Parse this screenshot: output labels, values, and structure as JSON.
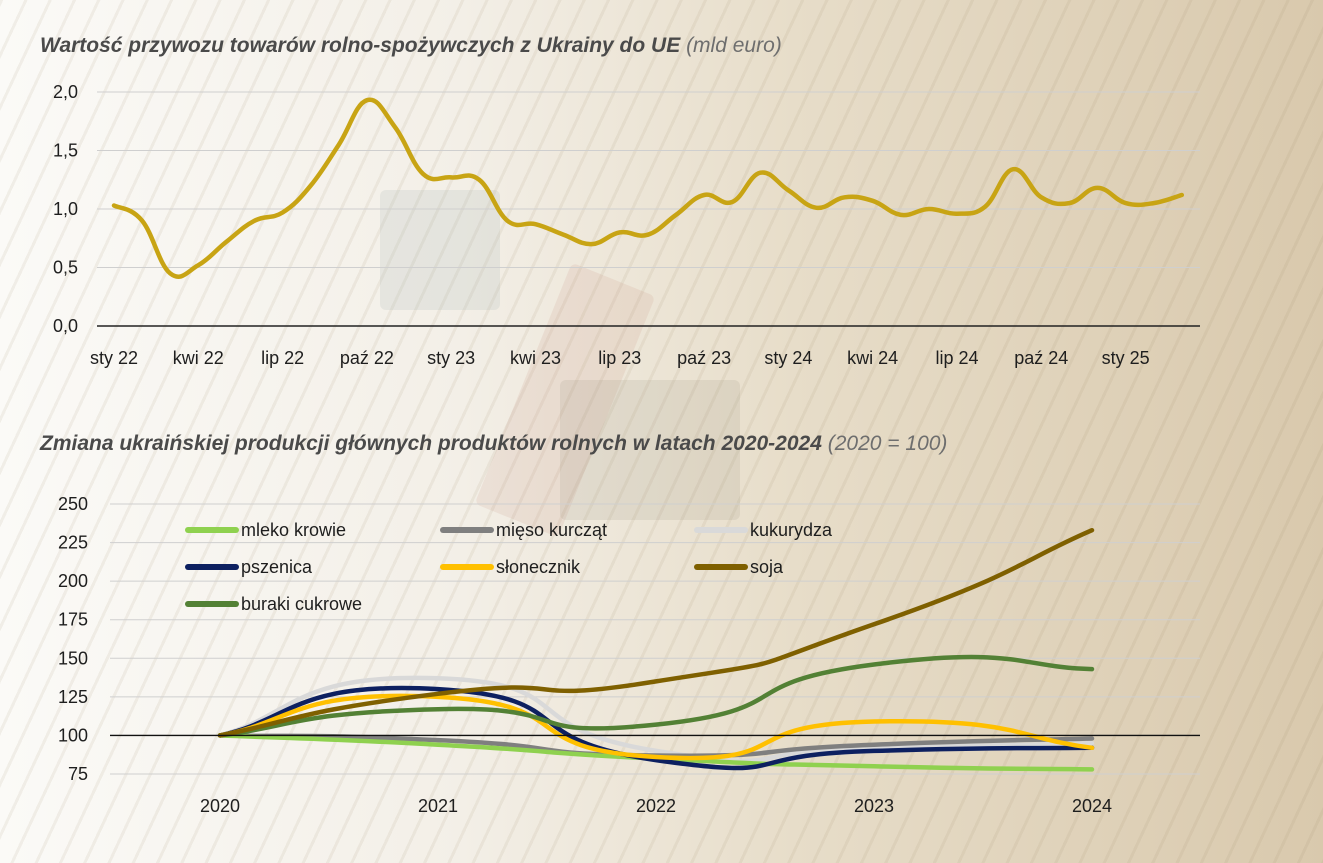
{
  "chart_data": [
    {
      "type": "line",
      "title": "Wartość przywozu towarów rolno-spożywczych z Ukrainy do UE",
      "subtitle": "(mld euro)",
      "ylim": [
        0,
        2.0
      ],
      "y_ticks": [
        "0,0",
        "0,5",
        "1,0",
        "1,5",
        "2,0"
      ],
      "x_tick_labels": [
        "sty 22",
        "kwi 22",
        "lip 22",
        "paź 22",
        "sty 23",
        "kwi 23",
        "lip 23",
        "paź 23",
        "sty 24",
        "kwi 24",
        "lip 24",
        "paź 24",
        "sty 25"
      ],
      "grid": true,
      "color": "#C8A414",
      "series": [
        {
          "x": [
            "2022-01",
            "2022-02",
            "2022-03",
            "2022-04",
            "2022-05",
            "2022-06",
            "2022-07",
            "2022-08",
            "2022-09",
            "2022-10",
            "2022-11",
            "2022-12",
            "2023-01",
            "2023-02",
            "2023-03",
            "2023-04",
            "2023-05",
            "2023-06",
            "2023-07",
            "2023-08",
            "2023-09",
            "2023-10",
            "2023-11",
            "2023-12",
            "2024-01",
            "2024-02",
            "2024-03",
            "2024-04",
            "2024-05",
            "2024-06",
            "2024-07",
            "2024-08",
            "2024-09",
            "2024-10",
            "2024-11",
            "2024-12",
            "2025-01",
            "2025-02",
            "2025-03"
          ],
          "values": [
            1.03,
            0.9,
            0.45,
            0.52,
            0.72,
            0.9,
            0.97,
            1.2,
            1.55,
            1.93,
            1.7,
            1.3,
            1.27,
            1.25,
            0.9,
            0.87,
            0.78,
            0.7,
            0.8,
            0.78,
            0.95,
            1.12,
            1.06,
            1.31,
            1.16,
            1.01,
            1.1,
            1.07,
            0.95,
            1.0,
            0.96,
            1.02,
            1.34,
            1.1,
            1.05,
            1.18,
            1.05,
            1.05,
            1.12
          ]
        }
      ]
    },
    {
      "type": "line",
      "title": "Zmiana ukraińskiej produkcji głównych produktów rolnych w latach 2020-2024",
      "subtitle": "(2020 = 100)",
      "categories": [
        "2020",
        "2021",
        "2022",
        "2023",
        "2024"
      ],
      "ylim": [
        75,
        250
      ],
      "y_ticks": [
        "75",
        "100",
        "125",
        "150",
        "175",
        "200",
        "225",
        "250"
      ],
      "grid": true,
      "reference_line": 100,
      "legend_position": "top-left",
      "series": [
        {
          "name": "kukurydza",
          "color": "#D9D9D9",
          "values": [
            100,
            137,
            90,
            92,
            95
          ]
        },
        {
          "name": "mięso kurcząt",
          "color": "#7F7F7F",
          "values": [
            100,
            97,
            87,
            94,
            98
          ]
        },
        {
          "name": "mleko krowie",
          "color": "#8FD14F",
          "values": [
            100,
            94,
            85,
            80,
            78
          ]
        },
        {
          "name": "pszenica",
          "color": "#0D2060",
          "values": [
            100,
            130,
            84,
            90,
            92
          ]
        },
        {
          "name": "słonecznik",
          "color": "#FFC000",
          "values": [
            100,
            125,
            86,
            109,
            92
          ]
        },
        {
          "name": "buraki cukrowe",
          "color": "#538135",
          "values": [
            100,
            117,
            107,
            146,
            143
          ]
        },
        {
          "name": "soja",
          "color": "#7F6000",
          "values": [
            100,
            127,
            135,
            172,
            233
          ]
        }
      ],
      "legend_order": [
        "mleko krowie",
        "mięso kurcząt",
        "kukurydza",
        "pszenica",
        "słonecznik",
        "soja",
        "buraki cukrowe"
      ]
    }
  ]
}
